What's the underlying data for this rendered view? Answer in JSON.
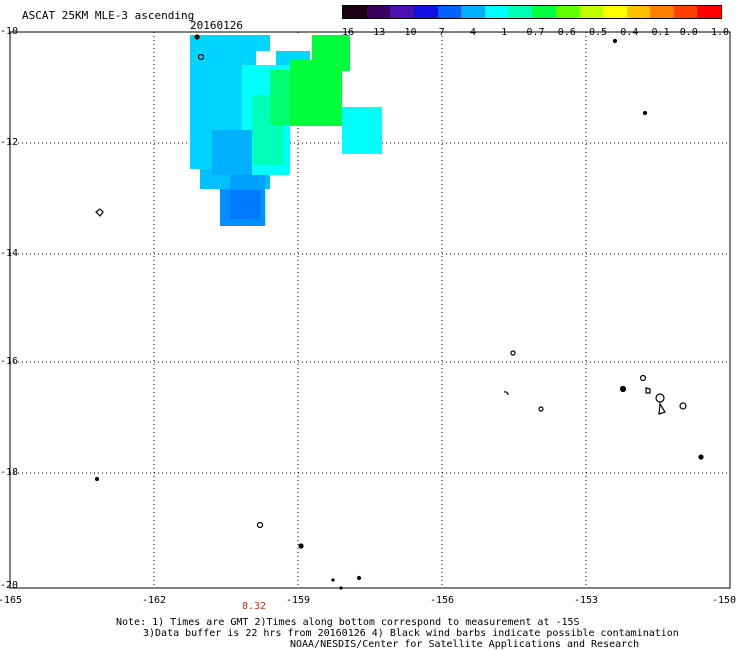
{
  "header": {
    "title": "ASCAT 25KM MLE-3 ascending",
    "date": "20160126"
  },
  "colorbar": {
    "labels": [
      "-16",
      "-13",
      "-10",
      "-7",
      "-4",
      "-1",
      "-0.7",
      "-0.6",
      "-0.5",
      "-0.4",
      "-0.1",
      "0.0",
      "1.0"
    ],
    "colors": [
      "#1a0010",
      "#3a0060",
      "#4a10b0",
      "#1010e0",
      "#0060ff",
      "#00b0ff",
      "#00ffff",
      "#00ffb0",
      "#00ff40",
      "#60ff00",
      "#c0ff00",
      "#ffff00",
      "#ffc000",
      "#ff8000",
      "#ff4000",
      "#ff0000"
    ]
  },
  "axes": {
    "lat_labels": [
      "-10",
      "-12",
      "-14",
      "-16",
      "-18",
      "-20"
    ],
    "lon_labels": [
      "-165",
      "-162",
      "-159",
      "-156",
      "-153",
      "-150"
    ]
  },
  "time_label": "8.32",
  "notes": {
    "line1": "Note: 1) Times are GMT 2)Times along bottom correspond to measurement at -15S",
    "line2": "3)Data buffer is 22 hrs from 20160126 4) Black wind barbs indicate possible contamination",
    "line3": "NOAA/NESDIS/Center for Satellite Applications and Research"
  },
  "data_colors": {
    "green": "#00ff3a",
    "cyan": "#00ffff",
    "light_blue": "#00d0ff",
    "blue": "#00a8ff",
    "deep_blue": "#0080ff"
  }
}
